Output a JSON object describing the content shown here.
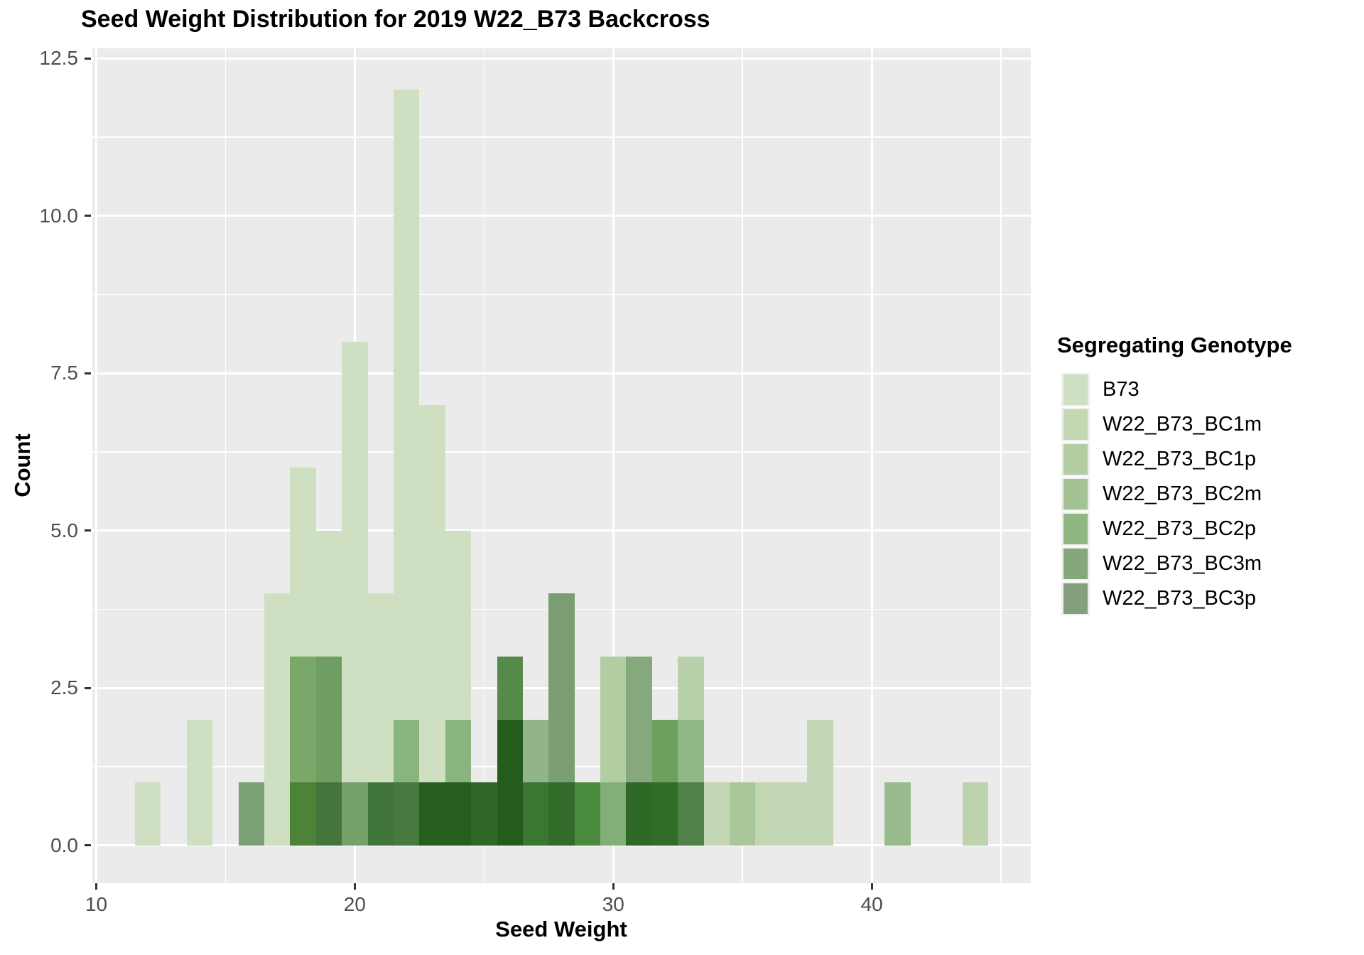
{
  "chart_data": {
    "type": "histogram",
    "title": "Seed Weight Distribution for 2019 W22_B73 Backcross",
    "xlabel": "Seed Weight",
    "ylabel": "Count",
    "xlim": [
      9.85,
      46.15
    ],
    "ylim": [
      -0.6,
      12.66
    ],
    "grid": true,
    "panel_color": "#ebebeb",
    "gridline_color": "#ffffff",
    "tick_label_color": "#4d4d4d",
    "bin_width": 1,
    "x_ticks": [
      {
        "value": 10,
        "label": "10"
      },
      {
        "value": 20,
        "label": "20"
      },
      {
        "value": 30,
        "label": "30"
      },
      {
        "value": 40,
        "label": "40"
      }
    ],
    "x_minor_ticks": [
      15,
      25,
      35,
      45
    ],
    "y_ticks": [
      {
        "value": 0,
        "label": "0.0"
      },
      {
        "value": 2.5,
        "label": "2.5"
      },
      {
        "value": 5,
        "label": "5.0"
      },
      {
        "value": 7.5,
        "label": "7.5"
      },
      {
        "value": 10,
        "label": "10.0"
      },
      {
        "value": 12.5,
        "label": "12.5"
      }
    ],
    "y_minor_ticks": [
      1.25,
      3.75,
      6.25,
      8.75,
      11.25
    ],
    "bins": [
      {
        "x": 12,
        "segments": [
          {
            "from": 0,
            "to": 1,
            "color": "#cfe0c2"
          }
        ]
      },
      {
        "x": 14,
        "segments": [
          {
            "from": 0,
            "to": 2,
            "color": "#cfe0c2"
          }
        ]
      },
      {
        "x": 16,
        "segments": [
          {
            "from": 0,
            "to": 1,
            "color": "#7ba075"
          }
        ]
      },
      {
        "x": 17,
        "segments": [
          {
            "from": 0,
            "to": 4,
            "color": "#cfe0c2"
          }
        ]
      },
      {
        "x": 18,
        "segments": [
          {
            "from": 0,
            "to": 1,
            "color": "#4d8339"
          },
          {
            "from": 1,
            "to": 3,
            "color": "#79a868"
          },
          {
            "from": 3,
            "to": 6,
            "color": "#cfe0c2"
          }
        ]
      },
      {
        "x": 19,
        "segments": [
          {
            "from": 0,
            "to": 1,
            "color": "#44763b"
          },
          {
            "from": 1,
            "to": 3,
            "color": "#6f9d62"
          },
          {
            "from": 3,
            "to": 5,
            "color": "#cfe0c2"
          }
        ]
      },
      {
        "x": 20,
        "segments": [
          {
            "from": 0,
            "to": 1,
            "color": "#73a168"
          },
          {
            "from": 1,
            "to": 8,
            "color": "#cfe0c2"
          }
        ]
      },
      {
        "x": 21,
        "segments": [
          {
            "from": 0,
            "to": 1,
            "color": "#41763a"
          },
          {
            "from": 1,
            "to": 4,
            "color": "#cfe0c2"
          }
        ]
      },
      {
        "x": 22,
        "segments": [
          {
            "from": 0,
            "to": 1,
            "color": "#48793f"
          },
          {
            "from": 1,
            "to": 2,
            "color": "#8ab47e"
          },
          {
            "from": 2,
            "to": 12,
            "color": "#cfe0c2"
          }
        ]
      },
      {
        "x": 23,
        "segments": [
          {
            "from": 0,
            "to": 1,
            "color": "#265e1e"
          },
          {
            "from": 1,
            "to": 7,
            "color": "#cfe0c2"
          }
        ]
      },
      {
        "x": 24,
        "segments": [
          {
            "from": 0,
            "to": 1,
            "color": "#265e1e"
          },
          {
            "from": 1,
            "to": 2,
            "color": "#8ab47e"
          },
          {
            "from": 2,
            "to": 5,
            "color": "#cfe0c2"
          }
        ]
      },
      {
        "x": 25,
        "segments": [
          {
            "from": 0,
            "to": 1,
            "color": "#2f6726"
          }
        ]
      },
      {
        "x": 26,
        "segments": [
          {
            "from": 0,
            "to": 2,
            "color": "#245c1d"
          },
          {
            "from": 2,
            "to": 3,
            "color": "#568a4a"
          }
        ]
      },
      {
        "x": 27,
        "segments": [
          {
            "from": 0,
            "to": 1,
            "color": "#3a7730"
          },
          {
            "from": 1,
            "to": 2,
            "color": "#92b489"
          }
        ]
      },
      {
        "x": 28,
        "segments": [
          {
            "from": 0,
            "to": 1,
            "color": "#336c2a"
          },
          {
            "from": 1,
            "to": 4,
            "color": "#7a9e71"
          }
        ]
      },
      {
        "x": 29,
        "segments": [
          {
            "from": 0,
            "to": 1,
            "color": "#4a8a3c"
          }
        ]
      },
      {
        "x": 30,
        "segments": [
          {
            "from": 0,
            "to": 1,
            "color": "#84ae78"
          },
          {
            "from": 1,
            "to": 3,
            "color": "#b3cda3"
          }
        ]
      },
      {
        "x": 31,
        "segments": [
          {
            "from": 0,
            "to": 1,
            "color": "#2e6a26"
          },
          {
            "from": 1,
            "to": 3,
            "color": "#85a87c"
          }
        ]
      },
      {
        "x": 32,
        "segments": [
          {
            "from": 0,
            "to": 1,
            "color": "#336d2a"
          },
          {
            "from": 1,
            "to": 2,
            "color": "#6da05c"
          }
        ]
      },
      {
        "x": 33,
        "segments": [
          {
            "from": 0,
            "to": 1,
            "color": "#4f8149"
          },
          {
            "from": 1,
            "to": 2,
            "color": "#8fb886"
          },
          {
            "from": 2,
            "to": 3,
            "color": "#b9d1ab"
          }
        ]
      },
      {
        "x": 34,
        "segments": [
          {
            "from": 0,
            "to": 1,
            "color": "#c3d6b4"
          }
        ]
      },
      {
        "x": 35,
        "segments": [
          {
            "from": 0,
            "to": 1,
            "color": "#a9c79a"
          }
        ]
      },
      {
        "x": 36,
        "segments": [
          {
            "from": 0,
            "to": 1,
            "color": "#c3d6b4"
          }
        ]
      },
      {
        "x": 37,
        "segments": [
          {
            "from": 0,
            "to": 1,
            "color": "#c3d6b4"
          }
        ]
      },
      {
        "x": 38,
        "segments": [
          {
            "from": 0,
            "to": 2,
            "color": "#c3d6b4"
          }
        ]
      },
      {
        "x": 41,
        "segments": [
          {
            "from": 0,
            "to": 1,
            "color": "#98ba8c"
          }
        ]
      },
      {
        "x": 44,
        "segments": [
          {
            "from": 0,
            "to": 1,
            "color": "#bdd3ae"
          }
        ]
      }
    ],
    "legend": {
      "title": "Segregating Genotype",
      "entries": [
        {
          "label": "B73",
          "color": "#cfe0c2"
        },
        {
          "label": "W22_B73_BC1m",
          "color": "#c3d7b3"
        },
        {
          "label": "W22_B73_BC1p",
          "color": "#b2cda1"
        },
        {
          "label": "W22_B73_BC2m",
          "color": "#a3c492"
        },
        {
          "label": "W22_B73_BC2p",
          "color": "#90b782"
        },
        {
          "label": "W22_B73_BC3m",
          "color": "#84a87b"
        },
        {
          "label": "W22_B73_BC3p",
          "color": "#839f7c"
        }
      ]
    }
  }
}
